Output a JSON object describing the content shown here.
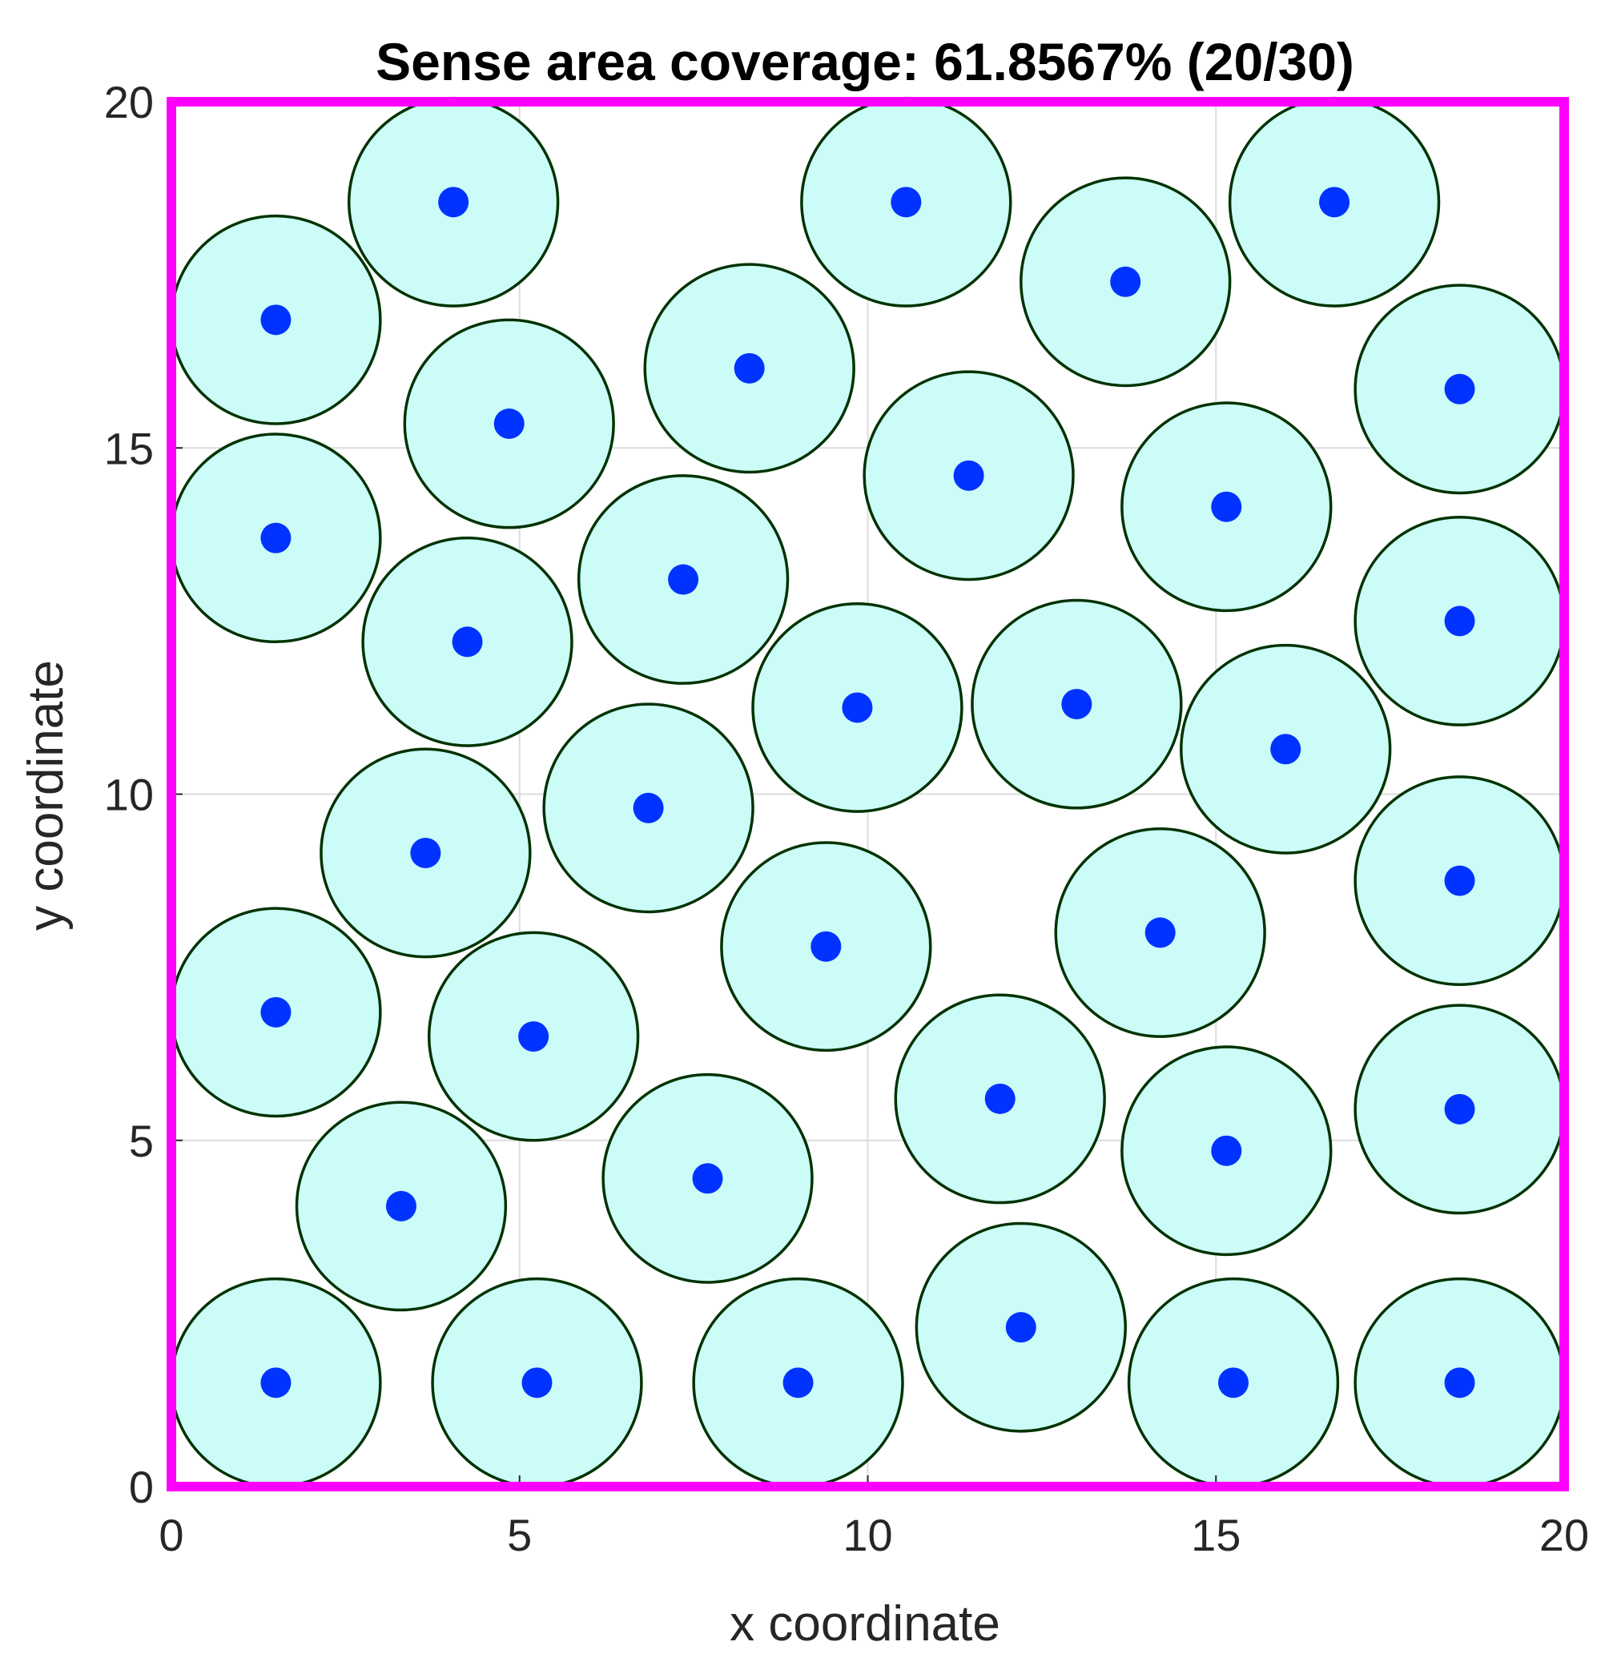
{
  "chart_data": {
    "type": "scatter",
    "title": "Sense area coverage: 61.8567% (20/30)",
    "xlabel": "x coordinate",
    "ylabel": "y coordinate",
    "xlim": [
      0,
      20
    ],
    "ylim": [
      0,
      20
    ],
    "xticks": [
      "0",
      "5",
      "10",
      "15",
      "20"
    ],
    "yticks": [
      "0",
      "5",
      "10",
      "15",
      "20"
    ],
    "grid": true,
    "legend": "none",
    "sensing_radius": 1.5,
    "colors": {
      "border": "#ff00ff",
      "circle_fill": "#ccfcf8",
      "circle_edge": "#003300",
      "node": "#0033ff",
      "grid": "#dcdcdc"
    },
    "series": [
      {
        "points": [
          {
            "x": 1.5,
            "y": 1.5
          },
          {
            "x": 5.25,
            "y": 1.5
          },
          {
            "x": 9.0,
            "y": 1.5
          },
          {
            "x": 12.2,
            "y": 2.3
          },
          {
            "x": 15.25,
            "y": 1.5
          },
          {
            "x": 18.5,
            "y": 1.5
          },
          {
            "x": 3.3,
            "y": 4.05
          },
          {
            "x": 7.7,
            "y": 4.45
          },
          {
            "x": 11.9,
            "y": 5.6
          },
          {
            "x": 15.15,
            "y": 4.85
          },
          {
            "x": 18.5,
            "y": 5.45
          },
          {
            "x": 1.5,
            "y": 6.85
          },
          {
            "x": 5.2,
            "y": 6.5
          },
          {
            "x": 9.4,
            "y": 7.8
          },
          {
            "x": 14.2,
            "y": 8.0
          },
          {
            "x": 18.5,
            "y": 8.75
          },
          {
            "x": 3.65,
            "y": 9.15
          },
          {
            "x": 6.85,
            "y": 9.8
          },
          {
            "x": 9.85,
            "y": 11.25
          },
          {
            "x": 13.0,
            "y": 11.3
          },
          {
            "x": 16.0,
            "y": 10.65
          },
          {
            "x": 18.5,
            "y": 12.5
          },
          {
            "x": 4.25,
            "y": 12.2
          },
          {
            "x": 7.35,
            "y": 13.1
          },
          {
            "x": 1.5,
            "y": 13.7
          },
          {
            "x": 11.45,
            "y": 14.6
          },
          {
            "x": 15.15,
            "y": 14.15
          },
          {
            "x": 4.85,
            "y": 15.35
          },
          {
            "x": 8.3,
            "y": 16.15
          },
          {
            "x": 18.5,
            "y": 15.85
          },
          {
            "x": 1.5,
            "y": 16.85
          },
          {
            "x": 13.7,
            "y": 17.4
          },
          {
            "x": 4.05,
            "y": 18.55
          },
          {
            "x": 10.55,
            "y": 18.55
          },
          {
            "x": 16.7,
            "y": 18.55
          }
        ]
      }
    ]
  }
}
